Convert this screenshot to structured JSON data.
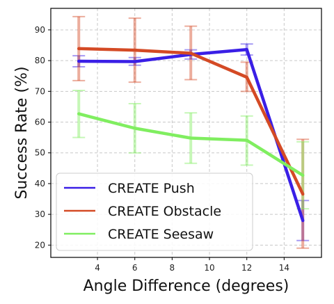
{
  "chart_data": {
    "type": "line",
    "xlabel": "Angle Difference (degrees)",
    "ylabel": "Success Rate (%)",
    "xlim": [
      1.5,
      16
    ],
    "ylim": [
      16,
      97
    ],
    "xticks": [
      4,
      6,
      8,
      10,
      12,
      14
    ],
    "yticks": [
      20,
      30,
      40,
      50,
      60,
      70,
      80,
      90
    ],
    "grid": true,
    "legend_position": "bottom-left",
    "x": [
      3,
      6,
      9,
      12,
      15
    ],
    "series": [
      {
        "name": "CREATE Push",
        "color": "#3a1fe6",
        "values": [
          79.8,
          79.7,
          82.0,
          83.6,
          28.0
        ],
        "err_low": [
          78.0,
          78.5,
          80.5,
          81.8,
          21.5
        ],
        "err_high": [
          81.6,
          81.0,
          83.5,
          85.4,
          34.5
        ]
      },
      {
        "name": "CREATE Obstacle",
        "color": "#d44a25",
        "values": [
          83.9,
          83.4,
          82.4,
          74.6,
          36.6
        ],
        "err_low": [
          73.5,
          73.0,
          73.8,
          70.0,
          19.0
        ],
        "err_high": [
          94.3,
          93.8,
          91.2,
          79.5,
          54.4
        ]
      },
      {
        "name": "CREATE Seesaw",
        "color": "#80ee60",
        "values": [
          62.7,
          58.0,
          54.8,
          54.1,
          42.7
        ],
        "err_low": [
          55.0,
          50.0,
          46.6,
          46.0,
          31.8
        ],
        "err_high": [
          70.3,
          66.0,
          63.0,
          62.0,
          53.6
        ]
      }
    ]
  }
}
